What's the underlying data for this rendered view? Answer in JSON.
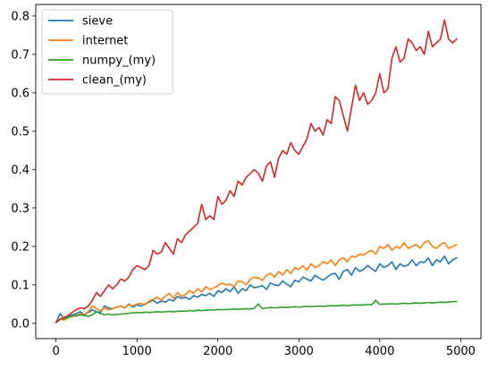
{
  "chart_data": {
    "type": "line",
    "title": "",
    "xlabel": "",
    "ylabel": "",
    "xlim": [
      -250,
      5250
    ],
    "ylim": [
      -0.04,
      0.83
    ],
    "xticks": [
      0,
      1000,
      2000,
      3000,
      4000,
      5000
    ],
    "xtick_labels": [
      "0",
      "1000",
      "2000",
      "3000",
      "4000",
      "5000"
    ],
    "yticks": [
      0.0,
      0.1,
      0.2,
      0.3,
      0.4,
      0.5,
      0.6,
      0.7,
      0.8
    ],
    "ytick_labels": [
      "0.0",
      "0.1",
      "0.2",
      "0.3",
      "0.4",
      "0.5",
      "0.6",
      "0.7",
      "0.8"
    ],
    "grid": false,
    "legend_position": "top-left",
    "x": [
      0,
      50,
      100,
      150,
      200,
      250,
      300,
      350,
      400,
      450,
      500,
      550,
      600,
      650,
      700,
      750,
      800,
      850,
      900,
      950,
      1000,
      1050,
      1100,
      1150,
      1200,
      1250,
      1300,
      1350,
      1400,
      1450,
      1500,
      1550,
      1600,
      1650,
      1700,
      1750,
      1800,
      1850,
      1900,
      1950,
      2000,
      2050,
      2100,
      2150,
      2200,
      2250,
      2300,
      2350,
      2400,
      2450,
      2500,
      2550,
      2600,
      2650,
      2700,
      2750,
      2800,
      2850,
      2900,
      2950,
      3000,
      3050,
      3100,
      3150,
      3200,
      3250,
      3300,
      3350,
      3400,
      3450,
      3500,
      3550,
      3600,
      3650,
      3700,
      3750,
      3800,
      3850,
      3900,
      3950,
      4000,
      4050,
      4100,
      4150,
      4200,
      4250,
      4300,
      4350,
      4400,
      4450,
      4500,
      4550,
      4600,
      4650,
      4700,
      4750,
      4800,
      4850,
      4900,
      4950
    ],
    "series": [
      {
        "name": "sieve",
        "color": "#1f77b4",
        "values": [
          0.002,
          0.025,
          0.012,
          0.018,
          0.022,
          0.025,
          0.03,
          0.022,
          0.028,
          0.035,
          0.03,
          0.028,
          0.045,
          0.04,
          0.038,
          0.042,
          0.045,
          0.04,
          0.05,
          0.042,
          0.048,
          0.045,
          0.05,
          0.055,
          0.06,
          0.052,
          0.058,
          0.055,
          0.062,
          0.058,
          0.07,
          0.065,
          0.068,
          0.062,
          0.072,
          0.068,
          0.075,
          0.072,
          0.078,
          0.07,
          0.085,
          0.08,
          0.09,
          0.082,
          0.095,
          0.078,
          0.09,
          0.085,
          0.1,
          0.092,
          0.095,
          0.098,
          0.088,
          0.105,
          0.1,
          0.098,
          0.11,
          0.102,
          0.095,
          0.112,
          0.108,
          0.12,
          0.115,
          0.11,
          0.125,
          0.118,
          0.112,
          0.12,
          0.128,
          0.13,
          0.115,
          0.135,
          0.14,
          0.125,
          0.145,
          0.135,
          0.14,
          0.15,
          0.142,
          0.135,
          0.155,
          0.145,
          0.15,
          0.16,
          0.14,
          0.155,
          0.148,
          0.152,
          0.165,
          0.15,
          0.16,
          0.158,
          0.17,
          0.15,
          0.165,
          0.16,
          0.175,
          0.155,
          0.165,
          0.17
        ]
      },
      {
        "name": "internet",
        "color": "#ff7f0e",
        "values": [
          0.002,
          0.012,
          0.008,
          0.015,
          0.02,
          0.018,
          0.025,
          0.022,
          0.03,
          0.045,
          0.038,
          0.032,
          0.04,
          0.035,
          0.038,
          0.042,
          0.045,
          0.04,
          0.048,
          0.045,
          0.05,
          0.052,
          0.048,
          0.058,
          0.062,
          0.068,
          0.06,
          0.07,
          0.078,
          0.065,
          0.08,
          0.07,
          0.075,
          0.085,
          0.078,
          0.09,
          0.082,
          0.095,
          0.088,
          0.092,
          0.098,
          0.105,
          0.1,
          0.102,
          0.095,
          0.11,
          0.108,
          0.1,
          0.115,
          0.12,
          0.118,
          0.112,
          0.125,
          0.13,
          0.12,
          0.135,
          0.125,
          0.14,
          0.13,
          0.145,
          0.14,
          0.15,
          0.138,
          0.155,
          0.145,
          0.15,
          0.16,
          0.155,
          0.165,
          0.15,
          0.165,
          0.17,
          0.16,
          0.175,
          0.172,
          0.18,
          0.178,
          0.185,
          0.19,
          0.18,
          0.2,
          0.195,
          0.205,
          0.19,
          0.2,
          0.195,
          0.21,
          0.195,
          0.2,
          0.205,
          0.195,
          0.21,
          0.215,
          0.2,
          0.195,
          0.205,
          0.21,
          0.195,
          0.2,
          0.205
        ]
      },
      {
        "name": "numpy_(my)",
        "color": "#2ca02c",
        "values": [
          0.002,
          0.01,
          0.012,
          0.015,
          0.018,
          0.02,
          0.022,
          0.02,
          0.018,
          0.022,
          0.03,
          0.025,
          0.022,
          0.024,
          0.022,
          0.023,
          0.024,
          0.025,
          0.026,
          0.027,
          0.028,
          0.027,
          0.029,
          0.028,
          0.029,
          0.03,
          0.029,
          0.03,
          0.031,
          0.03,
          0.031,
          0.032,
          0.031,
          0.033,
          0.032,
          0.034,
          0.033,
          0.034,
          0.035,
          0.034,
          0.036,
          0.035,
          0.036,
          0.036,
          0.037,
          0.036,
          0.037,
          0.038,
          0.037,
          0.039,
          0.05,
          0.038,
          0.04,
          0.041,
          0.04,
          0.041,
          0.042,
          0.041,
          0.042,
          0.043,
          0.042,
          0.043,
          0.044,
          0.043,
          0.044,
          0.045,
          0.044,
          0.045,
          0.046,
          0.045,
          0.046,
          0.047,
          0.046,
          0.047,
          0.048,
          0.047,
          0.048,
          0.049,
          0.048,
          0.06,
          0.049,
          0.05,
          0.05,
          0.051,
          0.05,
          0.051,
          0.052,
          0.051,
          0.052,
          0.053,
          0.052,
          0.053,
          0.054,
          0.053,
          0.054,
          0.055,
          0.054,
          0.055,
          0.056,
          0.057
        ]
      },
      {
        "name": "clean_(my)",
        "color": "#d62728",
        "values": [
          0.002,
          0.01,
          0.015,
          0.02,
          0.028,
          0.035,
          0.04,
          0.038,
          0.045,
          0.06,
          0.08,
          0.07,
          0.085,
          0.1,
          0.09,
          0.1,
          0.115,
          0.11,
          0.12,
          0.14,
          0.15,
          0.145,
          0.14,
          0.15,
          0.19,
          0.18,
          0.185,
          0.21,
          0.195,
          0.18,
          0.22,
          0.21,
          0.23,
          0.24,
          0.25,
          0.26,
          0.31,
          0.27,
          0.28,
          0.27,
          0.33,
          0.31,
          0.32,
          0.345,
          0.33,
          0.37,
          0.36,
          0.38,
          0.39,
          0.4,
          0.39,
          0.37,
          0.41,
          0.42,
          0.38,
          0.43,
          0.45,
          0.44,
          0.47,
          0.45,
          0.44,
          0.46,
          0.48,
          0.52,
          0.5,
          0.51,
          0.49,
          0.53,
          0.52,
          0.59,
          0.58,
          0.54,
          0.5,
          0.56,
          0.62,
          0.58,
          0.6,
          0.57,
          0.58,
          0.6,
          0.65,
          0.6,
          0.61,
          0.69,
          0.72,
          0.68,
          0.69,
          0.74,
          0.73,
          0.71,
          0.72,
          0.7,
          0.76,
          0.72,
          0.73,
          0.74,
          0.79,
          0.74,
          0.73,
          0.74
        ]
      }
    ]
  }
}
